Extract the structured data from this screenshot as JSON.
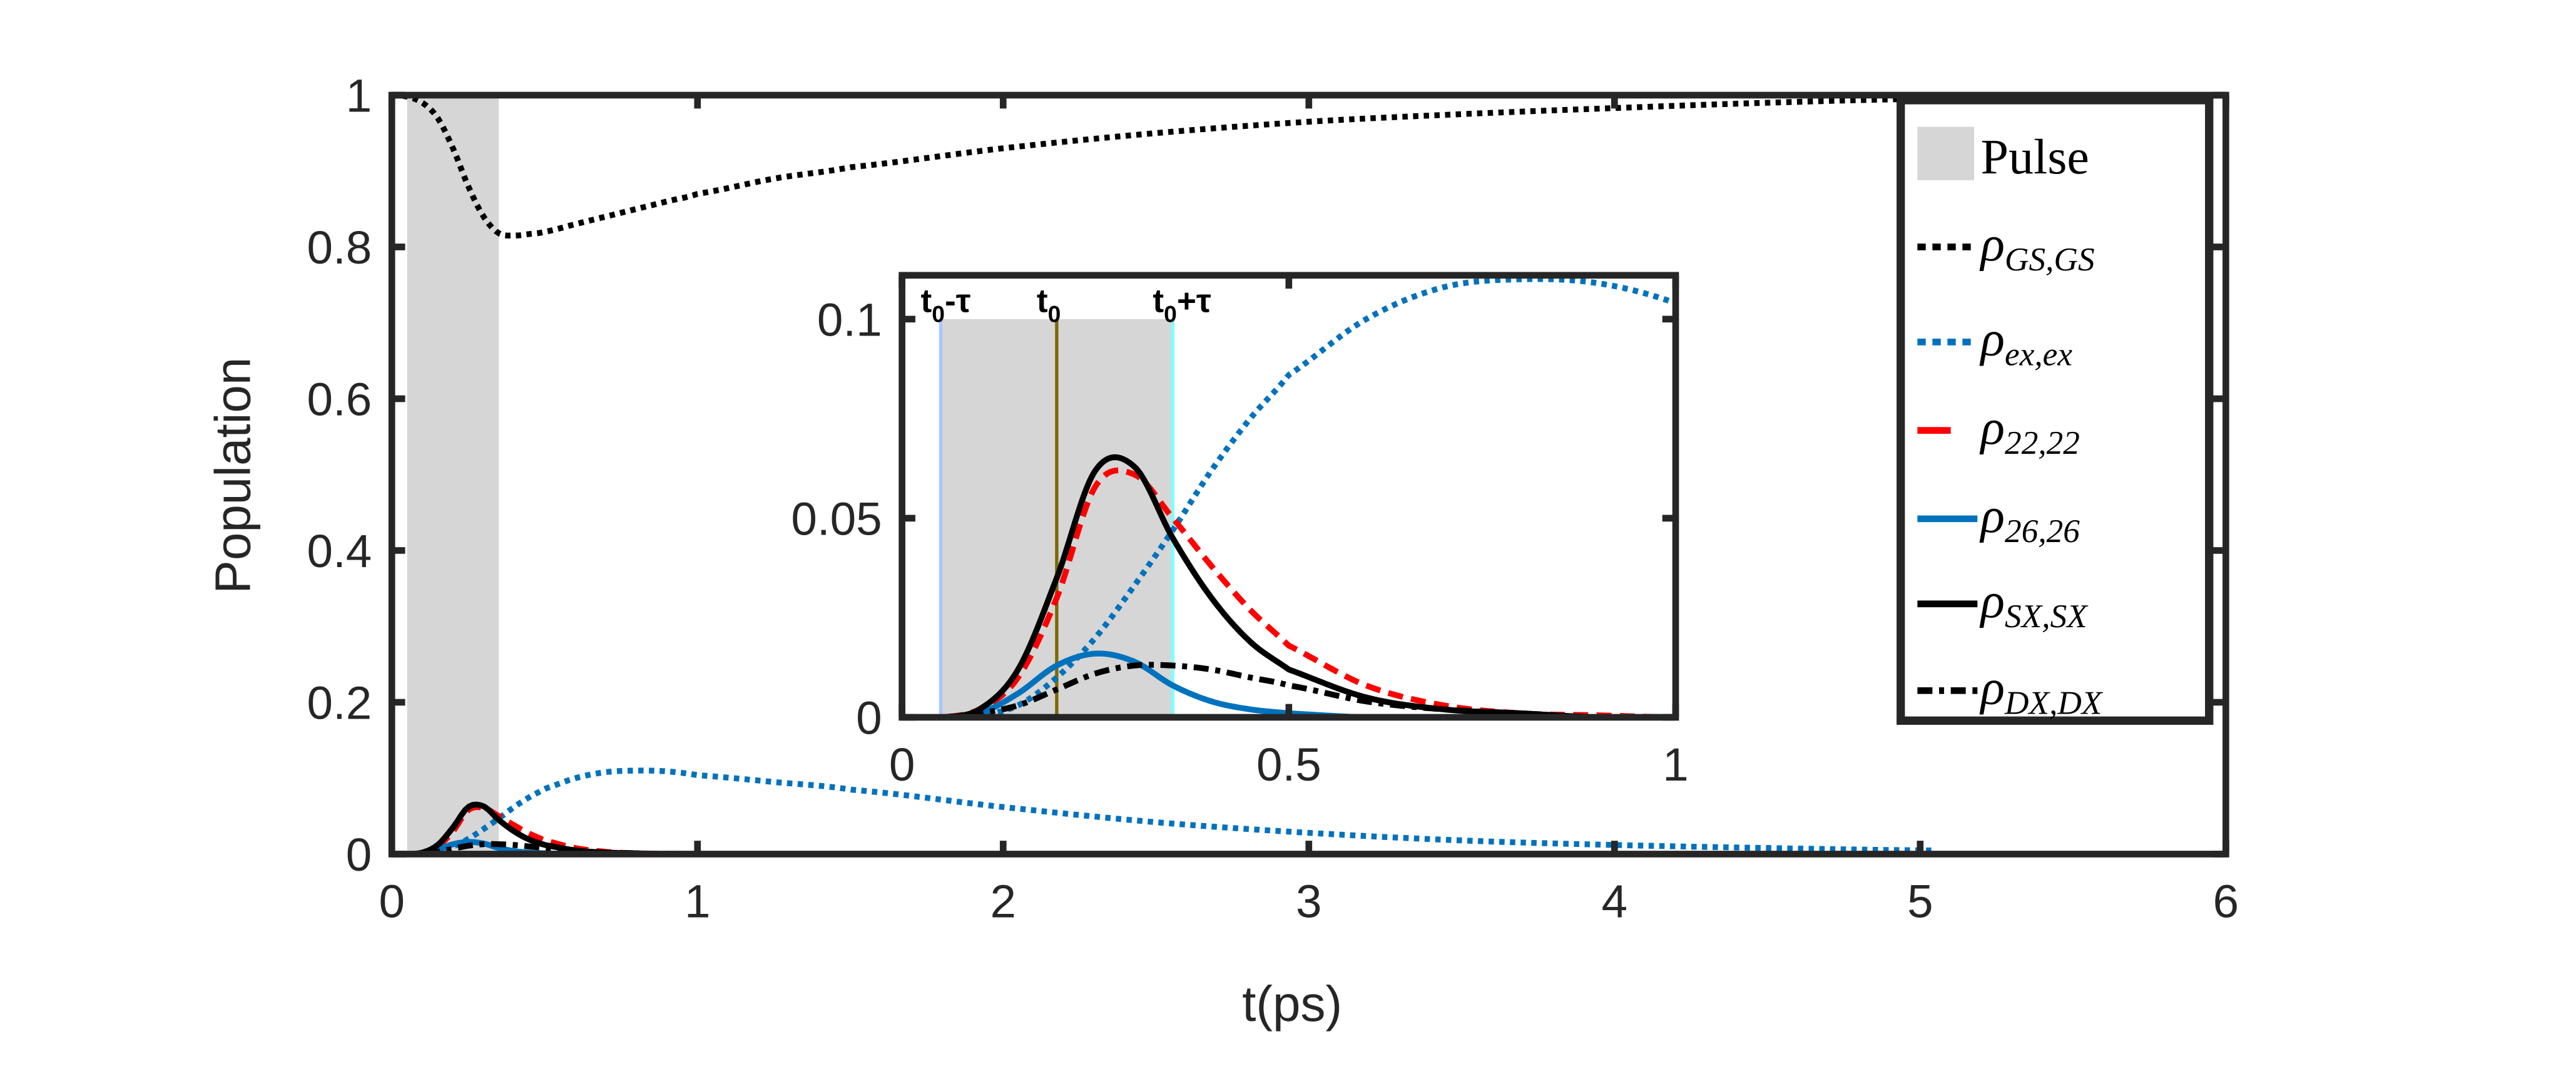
{
  "chart_data": [
    {
      "type": "line",
      "name": "main",
      "xlabel": "t(ps)",
      "ylabel": "Population",
      "xlim": [
        0,
        6
      ],
      "ylim": [
        0,
        1
      ],
      "xticks": [
        "0",
        "1",
        "2",
        "3",
        "4",
        "5",
        "6"
      ],
      "yticks": [
        "0",
        "0.2",
        "0.4",
        "0.6",
        "0.8",
        "1"
      ],
      "pulse": [
        0.05,
        0.35
      ],
      "legend": {
        "placement": "top-right",
        "entries": [
          {
            "label": "Pulse",
            "sym": "",
            "sub": ""
          },
          {
            "label": "ρGS,GS",
            "sym": "ρ",
            "sub": "GS,GS"
          },
          {
            "label": "ρex,ex",
            "sym": "ρ",
            "sub": "ex,ex"
          },
          {
            "label": "ρ22,22",
            "sym": "ρ",
            "sub": "22,22"
          },
          {
            "label": "ρ26,26",
            "sym": "ρ",
            "sub": "26,26"
          },
          {
            "label": "ρSX,SX",
            "sym": "ρ",
            "sub": "SX,SX"
          },
          {
            "label": "ρDX,DX",
            "sym": "ρ",
            "sub": "DX,DX"
          }
        ]
      },
      "x": [
        0,
        0.05,
        0.1,
        0.15,
        0.2,
        0.25,
        0.3,
        0.35,
        0.4,
        0.45,
        0.5,
        0.6,
        0.7,
        0.8,
        0.9,
        1.0,
        1.25,
        1.5,
        2,
        2.5,
        3,
        3.5,
        4,
        4.5,
        5,
        5.05
      ],
      "series": [
        {
          "name": "GS,GS",
          "color": "#000000",
          "style": "dotted",
          "values": [
            1,
            0.998,
            0.99,
            0.97,
            0.93,
            0.88,
            0.84,
            0.818,
            0.815,
            0.817,
            0.82,
            0.83,
            0.84,
            0.85,
            0.86,
            0.87,
            0.89,
            0.905,
            0.93,
            0.95,
            0.965,
            0.975,
            0.983,
            0.99,
            0.995,
            0.995
          ]
        },
        {
          "name": "ex,ex",
          "color": "#0072BD",
          "style": "dotted",
          "values": [
            0,
            0,
            0.0005,
            0.003,
            0.01,
            0.02,
            0.033,
            0.047,
            0.062,
            0.075,
            0.086,
            0.1,
            0.108,
            0.11,
            0.109,
            0.104,
            0.095,
            0.085,
            0.062,
            0.042,
            0.028,
            0.018,
            0.012,
            0.008,
            0.005,
            0.005
          ]
        },
        {
          "name": "22,22",
          "color": "#FF0000",
          "style": "dashed",
          "values": [
            0,
            0,
            0.002,
            0.01,
            0.03,
            0.058,
            0.061,
            0.05,
            0.038,
            0.027,
            0.018,
            0.008,
            0.003,
            0.001,
            0.0005,
            0,
            0,
            0,
            0,
            0,
            0,
            0,
            0,
            0,
            0,
            0
          ]
        },
        {
          "name": "26,26",
          "color": "#0072BD",
          "style": "solid",
          "values": [
            0,
            0,
            0.001,
            0.006,
            0.013,
            0.016,
            0.014,
            0.008,
            0.004,
            0.002,
            0.001,
            0,
            0,
            0,
            0,
            0,
            0,
            0,
            0,
            0,
            0,
            0,
            0,
            0,
            0,
            0
          ]
        },
        {
          "name": "SX,SX",
          "color": "#000000",
          "style": "solid",
          "values": [
            0,
            0,
            0.002,
            0.012,
            0.035,
            0.062,
            0.063,
            0.045,
            0.03,
            0.019,
            0.012,
            0.005,
            0.002,
            0.001,
            0,
            0,
            0,
            0,
            0,
            0,
            0,
            0,
            0,
            0,
            0,
            0
          ]
        },
        {
          "name": "DX,DX",
          "color": "#000000",
          "style": "dashdot",
          "values": [
            0,
            0,
            0.001,
            0.003,
            0.007,
            0.011,
            0.013,
            0.013,
            0.012,
            0.01,
            0.008,
            0.004,
            0.002,
            0.001,
            0,
            0,
            0,
            0,
            0,
            0,
            0,
            0,
            0,
            0,
            0,
            0
          ]
        }
      ]
    },
    {
      "type": "line",
      "name": "inset",
      "xlim": [
        0,
        1
      ],
      "ylim": [
        0,
        0.111
      ],
      "xticks": [
        "0",
        "0.5",
        "1"
      ],
      "xtick_values": [
        0,
        0.5,
        1
      ],
      "yticks": [
        "0",
        "0.05",
        "0.1"
      ],
      "ytick_values": [
        0,
        0.05,
        0.1
      ],
      "pulse": [
        0.05,
        0.35
      ],
      "markers": [
        {
          "x": 0.05,
          "label": "t0-τ",
          "base": "t",
          "sub": "0",
          "rest": "-τ",
          "color": "#A6C8FF"
        },
        {
          "x": 0.2,
          "label": "t0",
          "base": "t",
          "sub": "0",
          "rest": "",
          "color": "#7A6A00"
        },
        {
          "x": 0.35,
          "label": "t0+τ",
          "base": "t",
          "sub": "0",
          "rest": "+τ",
          "color": "#7FFFFF"
        }
      ],
      "note": "same series as main, shown for t in [0,1]"
    }
  ]
}
